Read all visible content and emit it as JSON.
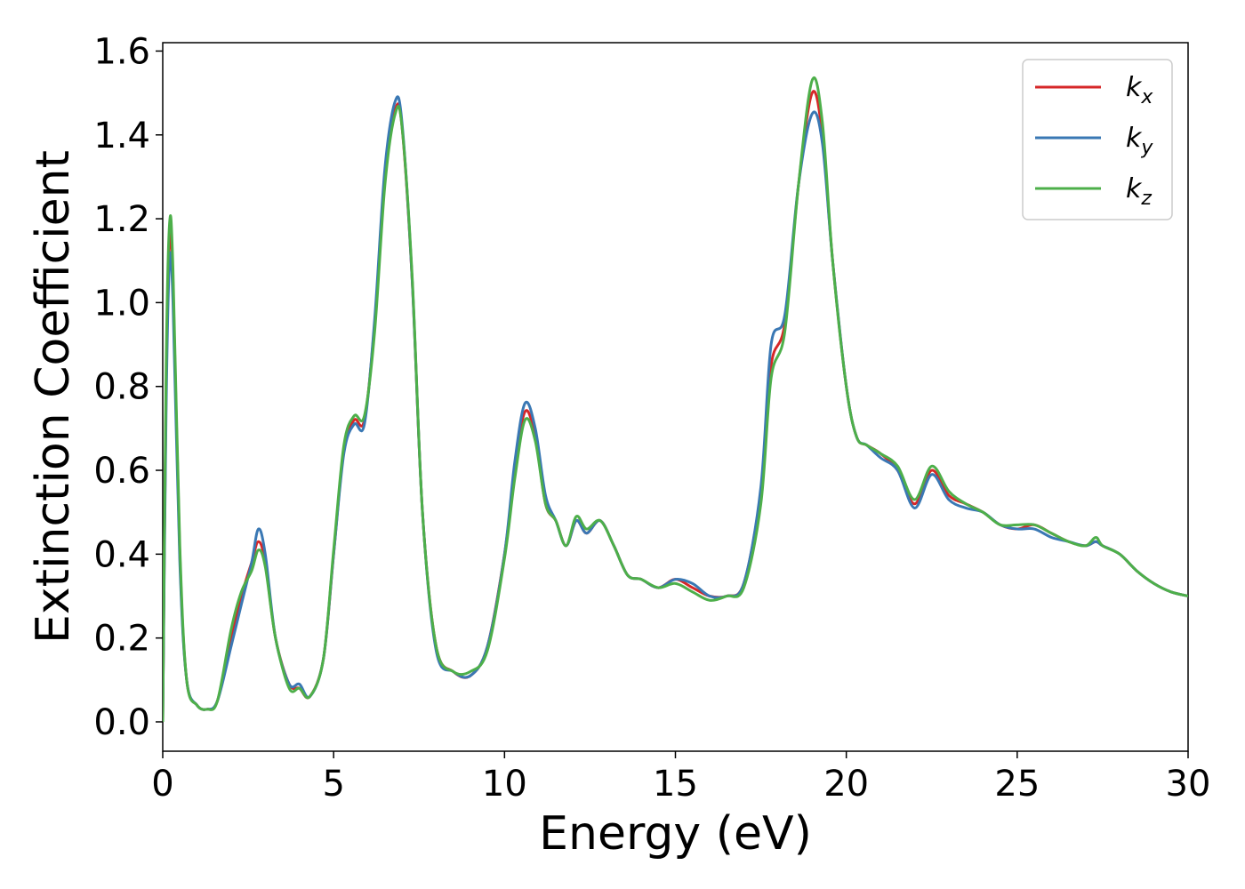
{
  "chart_data": {
    "type": "line",
    "xlabel": "Energy (eV)",
    "ylabel": "Extinction Coefficient",
    "xlim": [
      0,
      30
    ],
    "ylim": [
      -0.07,
      1.62
    ],
    "xticks": [
      "0",
      "5",
      "10",
      "15",
      "20",
      "25",
      "30"
    ],
    "yticks": [
      "0.0",
      "0.2",
      "0.4",
      "0.6",
      "0.8",
      "1.0",
      "1.2",
      "1.4",
      "1.6"
    ],
    "grid": false,
    "legend_position": "top-right",
    "series": [
      {
        "name": "k",
        "subscript": "x",
        "color": "#d62728",
        "x": [
          0,
          0.1,
          0.2,
          0.3,
          0.5,
          0.7,
          1.0,
          1.3,
          1.6,
          2.0,
          2.3,
          2.6,
          2.8,
          3.0,
          3.3,
          3.7,
          4.0,
          4.3,
          4.7,
          5.0,
          5.3,
          5.6,
          5.9,
          6.2,
          6.5,
          6.8,
          7.0,
          7.3,
          7.6,
          8.0,
          8.5,
          9.0,
          9.5,
          10.0,
          10.3,
          10.6,
          10.9,
          11.2,
          11.5,
          11.8,
          12.1,
          12.4,
          12.8,
          13.2,
          13.6,
          14.0,
          14.5,
          15.0,
          15.5,
          16.0,
          16.5,
          17.0,
          17.5,
          17.8,
          18.2,
          18.6,
          19.0,
          19.3,
          19.6,
          20.0,
          20.3,
          20.6,
          21.0,
          21.5,
          22.0,
          22.5,
          23.0,
          23.5,
          24.0,
          24.5,
          25.0,
          25.5,
          26.0,
          26.5,
          27.0,
          27.3,
          27.5,
          28.0,
          28.5,
          29.0,
          29.5,
          30.0
        ],
        "values": [
          0.0,
          0.8,
          1.15,
          1.05,
          0.4,
          0.1,
          0.04,
          0.03,
          0.05,
          0.2,
          0.3,
          0.38,
          0.43,
          0.38,
          0.2,
          0.09,
          0.08,
          0.06,
          0.15,
          0.4,
          0.65,
          0.72,
          0.72,
          0.95,
          1.3,
          1.46,
          1.42,
          1.05,
          0.5,
          0.18,
          0.12,
          0.11,
          0.18,
          0.4,
          0.6,
          0.74,
          0.68,
          0.52,
          0.48,
          0.42,
          0.48,
          0.45,
          0.48,
          0.42,
          0.35,
          0.34,
          0.32,
          0.34,
          0.32,
          0.3,
          0.3,
          0.33,
          0.55,
          0.85,
          0.95,
          1.28,
          1.5,
          1.4,
          1.1,
          0.8,
          0.68,
          0.66,
          0.64,
          0.6,
          0.52,
          0.6,
          0.54,
          0.52,
          0.5,
          0.47,
          0.46,
          0.47,
          0.45,
          0.43,
          0.42,
          0.43,
          0.42,
          0.4,
          0.36,
          0.33,
          0.31,
          0.3
        ]
      },
      {
        "name": "k",
        "subscript": "y",
        "color": "#3a78b4",
        "x": [
          0,
          0.1,
          0.2,
          0.3,
          0.5,
          0.7,
          1.0,
          1.3,
          1.6,
          2.0,
          2.3,
          2.6,
          2.8,
          3.0,
          3.3,
          3.7,
          4.0,
          4.3,
          4.7,
          5.0,
          5.3,
          5.6,
          5.9,
          6.2,
          6.5,
          6.8,
          7.0,
          7.3,
          7.6,
          8.0,
          8.5,
          9.0,
          9.5,
          10.0,
          10.3,
          10.6,
          10.9,
          11.2,
          11.5,
          11.8,
          12.1,
          12.4,
          12.8,
          13.2,
          13.6,
          14.0,
          14.5,
          15.0,
          15.5,
          16.0,
          16.5,
          17.0,
          17.5,
          17.8,
          18.2,
          18.6,
          19.0,
          19.3,
          19.6,
          20.0,
          20.3,
          20.6,
          21.0,
          21.5,
          22.0,
          22.5,
          23.0,
          23.5,
          24.0,
          24.5,
          25.0,
          25.5,
          26.0,
          26.5,
          27.0,
          27.3,
          27.5,
          28.0,
          28.5,
          29.0,
          29.5,
          30.0
        ],
        "values": [
          0.0,
          0.75,
          1.1,
          1.0,
          0.38,
          0.1,
          0.04,
          0.03,
          0.05,
          0.18,
          0.28,
          0.38,
          0.46,
          0.4,
          0.2,
          0.09,
          0.09,
          0.06,
          0.15,
          0.4,
          0.64,
          0.71,
          0.71,
          0.96,
          1.32,
          1.48,
          1.43,
          1.05,
          0.5,
          0.17,
          0.12,
          0.11,
          0.18,
          0.4,
          0.62,
          0.76,
          0.7,
          0.54,
          0.48,
          0.42,
          0.48,
          0.45,
          0.48,
          0.42,
          0.35,
          0.34,
          0.32,
          0.34,
          0.33,
          0.3,
          0.3,
          0.33,
          0.56,
          0.9,
          0.97,
          1.28,
          1.45,
          1.38,
          1.1,
          0.8,
          0.68,
          0.66,
          0.63,
          0.6,
          0.51,
          0.59,
          0.53,
          0.51,
          0.5,
          0.47,
          0.46,
          0.46,
          0.44,
          0.43,
          0.42,
          0.43,
          0.42,
          0.4,
          0.36,
          0.33,
          0.31,
          0.3
        ]
      },
      {
        "name": "k",
        "subscript": "z",
        "color": "#4daf4a",
        "x": [
          0,
          0.1,
          0.2,
          0.3,
          0.5,
          0.7,
          1.0,
          1.3,
          1.6,
          2.0,
          2.3,
          2.6,
          2.8,
          3.0,
          3.3,
          3.7,
          4.0,
          4.3,
          4.7,
          5.0,
          5.3,
          5.6,
          5.9,
          6.2,
          6.5,
          6.8,
          7.0,
          7.3,
          7.6,
          8.0,
          8.5,
          9.0,
          9.5,
          10.0,
          10.3,
          10.6,
          10.9,
          11.2,
          11.5,
          11.8,
          12.1,
          12.4,
          12.8,
          13.2,
          13.6,
          14.0,
          14.5,
          15.0,
          15.5,
          16.0,
          16.5,
          17.0,
          17.5,
          17.8,
          18.2,
          18.6,
          19.0,
          19.3,
          19.6,
          20.0,
          20.3,
          20.6,
          21.0,
          21.5,
          22.0,
          22.5,
          23.0,
          23.5,
          24.0,
          24.5,
          25.0,
          25.5,
          26.0,
          26.5,
          27.0,
          27.3,
          27.5,
          28.0,
          28.5,
          29.0,
          29.5,
          30.0
        ],
        "values": [
          0.0,
          0.85,
          1.19,
          1.08,
          0.42,
          0.1,
          0.04,
          0.03,
          0.05,
          0.22,
          0.31,
          0.36,
          0.41,
          0.37,
          0.2,
          0.08,
          0.08,
          0.06,
          0.15,
          0.41,
          0.66,
          0.73,
          0.73,
          0.93,
          1.28,
          1.45,
          1.42,
          1.06,
          0.5,
          0.18,
          0.12,
          0.12,
          0.17,
          0.39,
          0.58,
          0.72,
          0.67,
          0.52,
          0.48,
          0.42,
          0.49,
          0.46,
          0.48,
          0.42,
          0.35,
          0.34,
          0.32,
          0.33,
          0.31,
          0.29,
          0.3,
          0.32,
          0.52,
          0.82,
          0.93,
          1.28,
          1.53,
          1.43,
          1.1,
          0.8,
          0.68,
          0.66,
          0.64,
          0.61,
          0.53,
          0.61,
          0.55,
          0.52,
          0.5,
          0.47,
          0.47,
          0.47,
          0.45,
          0.43,
          0.42,
          0.44,
          0.42,
          0.4,
          0.36,
          0.33,
          0.31,
          0.3
        ]
      }
    ]
  }
}
